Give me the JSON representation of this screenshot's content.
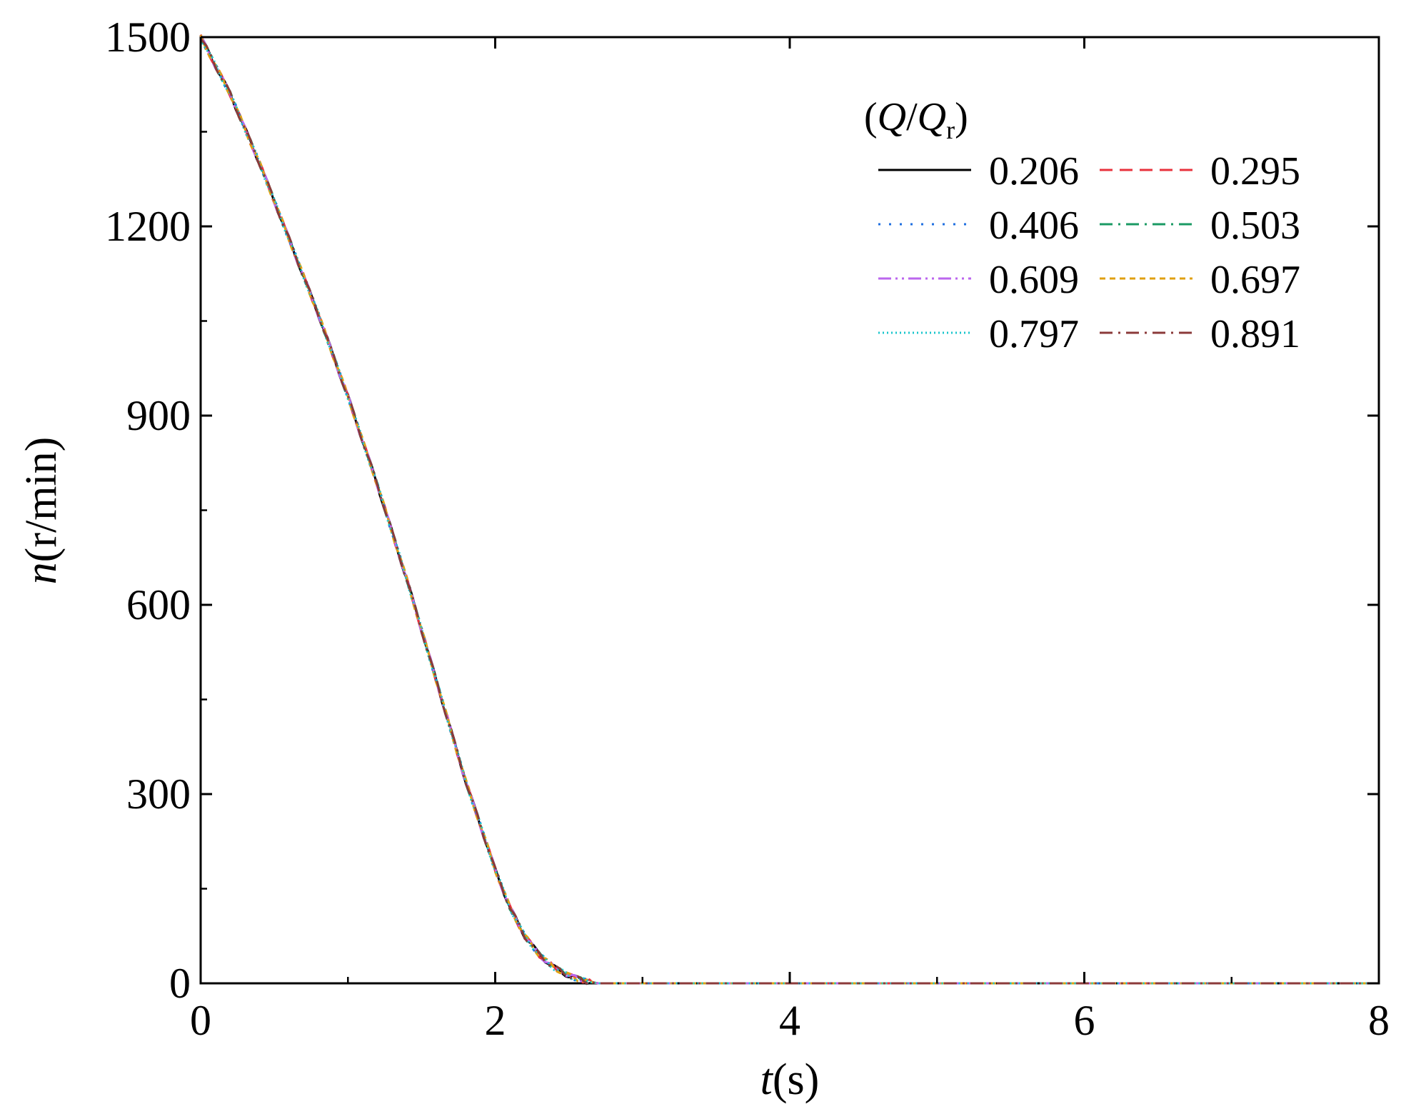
{
  "chart_data": {
    "type": "line",
    "xlabel": {
      "var": "t",
      "unit": "(s)"
    },
    "ylabel": {
      "var": "n",
      "unit": "(r/min)"
    },
    "xlim": [
      0,
      8
    ],
    "ylim": [
      0,
      1500
    ],
    "x_ticks": [
      0,
      2,
      4,
      6,
      8
    ],
    "x_tick_labels": [
      "0",
      "2",
      "4",
      "6",
      "8"
    ],
    "y_ticks": [
      0,
      300,
      600,
      900,
      1200,
      1500
    ],
    "y_tick_labels": [
      "0",
      "300",
      "600",
      "900",
      "1200",
      "1500"
    ],
    "x_minor_ticks": [
      1,
      3,
      5,
      7
    ],
    "y_minor_ticks": [
      150,
      450,
      750,
      1050,
      1350
    ],
    "grid": false,
    "legend": {
      "placement": "top-right",
      "title": {
        "open": "(",
        "var": "Q",
        "slash": "/",
        "var2": "Q",
        "sub": "r",
        "close": ")"
      }
    },
    "series": [
      {
        "name": "0.206",
        "color": "#000000",
        "dash": "solid"
      },
      {
        "name": "0.295",
        "color": "#e8323c",
        "dash": "dash"
      },
      {
        "name": "0.406",
        "color": "#1f6fe0",
        "dash": "dot"
      },
      {
        "name": "0.503",
        "color": "#1a9a63",
        "dash": "dashdot"
      },
      {
        "name": "0.609",
        "color": "#bb66ee",
        "dash": "dashdotdot"
      },
      {
        "name": "0.697",
        "color": "#e0a010",
        "dash": "shortdash"
      },
      {
        "name": "0.797",
        "color": "#19c6cc",
        "dash": "densedot"
      },
      {
        "name": "0.891",
        "color": "#8b3a3a",
        "dash": "dashdot"
      }
    ],
    "curve": {
      "x": [
        0,
        0.2,
        0.4,
        0.6,
        0.8,
        1.0,
        1.2,
        1.4,
        1.6,
        1.8,
        2.0,
        2.1,
        2.2,
        2.3,
        2.4,
        2.5,
        2.6,
        2.7,
        2.8,
        3,
        4,
        5,
        6,
        7,
        8
      ],
      "y": [
        1500,
        1410,
        1300,
        1180,
        1060,
        930,
        790,
        640,
        480,
        320,
        180,
        120,
        75,
        45,
        25,
        12,
        4,
        0,
        0,
        0,
        0,
        0,
        0,
        0,
        0
      ]
    }
  }
}
